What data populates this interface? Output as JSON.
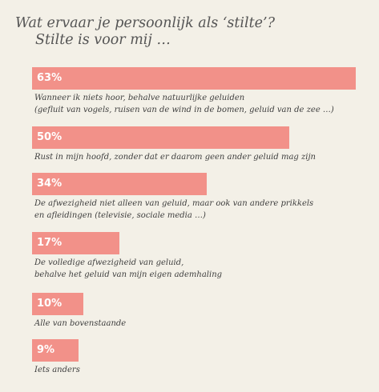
{
  "title": "Wat ervaar je persoonlijk als ‘stilte’?",
  "subtitle": "Stilte is voor mij …",
  "colors": {
    "bar": "#f29189",
    "background": "#f3f0e7"
  },
  "chart_data": {
    "type": "bar",
    "orientation": "horizontal",
    "title": "Wat ervaar je persoonlijk als ‘stilte’?",
    "subtitle": "Stilte is voor mij …",
    "xlim": [
      0,
      100
    ],
    "unit": "%",
    "items": [
      {
        "value": 63,
        "value_label": "63%",
        "label": [
          "Wanneer ik niets hoor, behalve natuurlijke geluiden",
          "(gefluit van vogels, ruisen van de wind in de bomen, geluid van de zee …)"
        ]
      },
      {
        "value": 50,
        "value_label": "50%",
        "label": [
          "Rust in mijn hoofd, zonder dat er daarom geen ander geluid mag zijn"
        ]
      },
      {
        "value": 34,
        "value_label": "34%",
        "label": [
          "De afwezigheid niet alleen van geluid, maar ook van andere prikkels",
          "en afleidingen (televisie, sociale media …)"
        ]
      },
      {
        "value": 17,
        "value_label": "17%",
        "label": [
          "De volledige afwezigheid van geluid,",
          "behalve het geluid van mijn eigen ademhaling"
        ]
      },
      {
        "value": 10,
        "value_label": "10%",
        "label": [
          "Alle van bovenstaande"
        ]
      },
      {
        "value": 9,
        "value_label": "9%",
        "label": [
          "Iets anders"
        ]
      }
    ]
  }
}
